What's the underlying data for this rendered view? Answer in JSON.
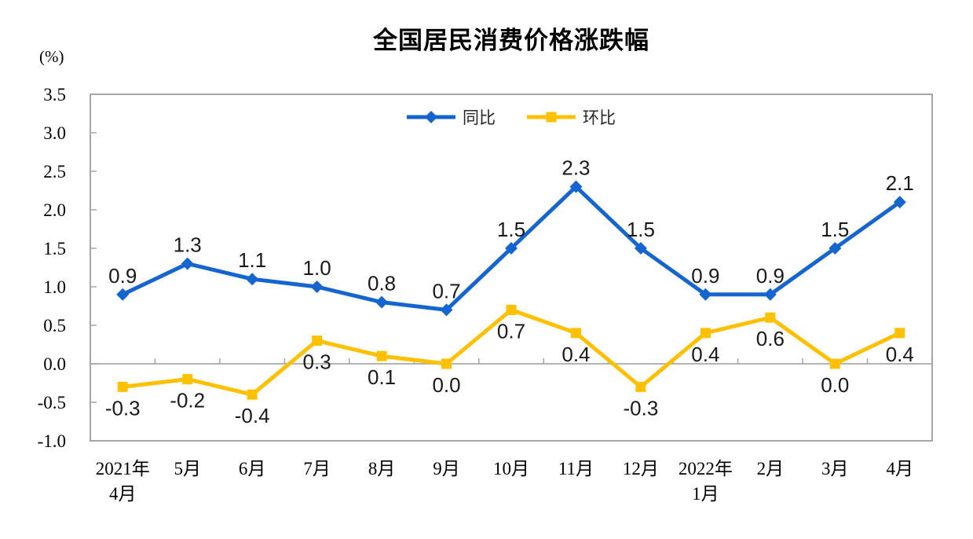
{
  "title": "全国居民消费价格涨跌幅",
  "unit_label": "(%)",
  "colors": {
    "background": "#ffffff",
    "plot_border": "#a6a6a6",
    "zero_line": "#b3b3b3",
    "tick": "#a6a6a6",
    "axis_text": "#000000",
    "data_label_text": "#1a1a1a",
    "series_yoy": "#1565D0",
    "series_mom": "#FFC000"
  },
  "chart_data": {
    "type": "line",
    "title": "全国居民消费价格涨跌幅",
    "ylabel": "(%)",
    "categories": [
      "2021年\n4月",
      "5月",
      "6月",
      "7月",
      "8月",
      "9月",
      "10月",
      "11月",
      "12月",
      "2022年\n1月",
      "2月",
      "3月",
      "4月"
    ],
    "series": [
      {
        "id": "yoy",
        "name": "同比",
        "color": "#1565D0",
        "marker": "diamond",
        "label_side": "above",
        "values": [
          0.9,
          1.3,
          1.1,
          1.0,
          0.8,
          0.7,
          1.5,
          2.3,
          1.5,
          0.9,
          0.9,
          1.5,
          2.1
        ]
      },
      {
        "id": "mom",
        "name": "环比",
        "color": "#FFC000",
        "marker": "square",
        "label_side": "below",
        "values": [
          -0.3,
          -0.2,
          -0.4,
          0.3,
          0.1,
          0.0,
          0.7,
          0.4,
          -0.3,
          0.4,
          0.6,
          0.0,
          0.4
        ]
      }
    ],
    "ylim": [
      -1.0,
      3.5
    ],
    "yticks": [
      3.5,
      3.0,
      2.5,
      2.0,
      1.5,
      1.0,
      0.5,
      0.0,
      -0.5,
      -1.0
    ],
    "grid": false,
    "legend_position": "top-center",
    "data_labels": true,
    "decimals": 1
  }
}
